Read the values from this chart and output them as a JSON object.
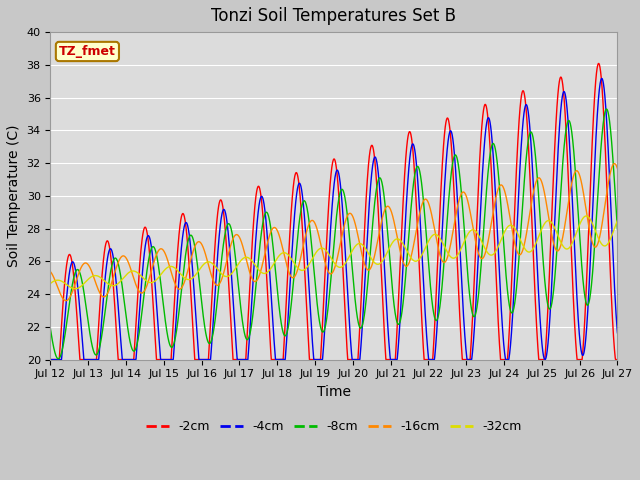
{
  "title": "Tonzi Soil Temperatures Set B",
  "xlabel": "Time",
  "ylabel": "Soil Temperature (C)",
  "ylim": [
    20,
    40
  ],
  "xlim": [
    0,
    360
  ],
  "x_tick_labels": [
    "Jul 12",
    "Jul 13",
    "Jul 14",
    "Jul 15",
    "Jul 16",
    "Jul 17",
    "Jul 18",
    "Jul 19",
    "Jul 20",
    "Jul 21",
    "Jul 22",
    "Jul 23",
    "Jul 24",
    "Jul 25",
    "Jul 26",
    "Jul 27"
  ],
  "x_tick_positions": [
    0,
    24,
    48,
    72,
    96,
    120,
    144,
    168,
    192,
    216,
    240,
    264,
    288,
    312,
    336,
    360
  ],
  "colors": {
    "-2cm": "#ff0000",
    "-4cm": "#0000ee",
    "-8cm": "#00bb00",
    "-16cm": "#ff8800",
    "-32cm": "#dddd00"
  },
  "legend_label": "TZ_fmet",
  "legend_bg": "#ffffcc",
  "legend_border": "#aa7700",
  "fig_bg": "#c8c8c8",
  "plot_bg": "#dcdcdc",
  "grid_color": "#ffffff",
  "title_fontsize": 12,
  "axis_label_fontsize": 10,
  "tick_fontsize": 8,
  "series_names": [
    "-2cm",
    "-4cm",
    "-8cm",
    "-16cm",
    "-32cm"
  ]
}
